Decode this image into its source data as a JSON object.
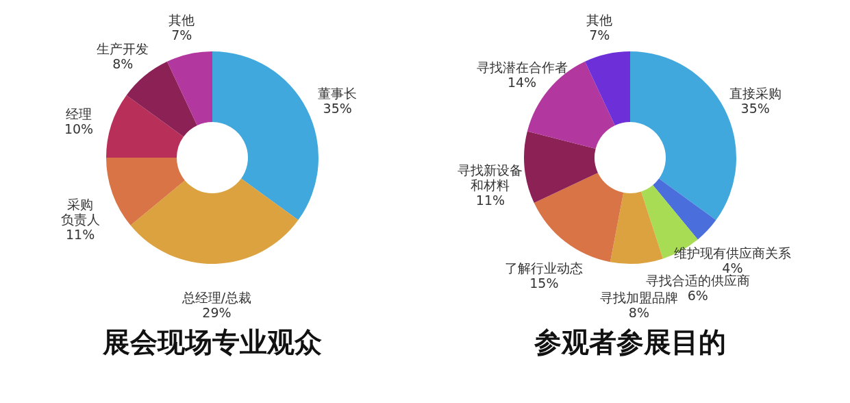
{
  "chart_data": [
    {
      "type": "donut",
      "title": "展会现场专业观众",
      "categories": [
        "董事长",
        "总经理/总裁",
        "采购负责人",
        "经理",
        "生产开发",
        "其他"
      ],
      "values": [
        35,
        29,
        11,
        10,
        8,
        7
      ],
      "value_labels": [
        "35%",
        "29%",
        "11%",
        "10%",
        "8%",
        "7%"
      ],
      "colors": [
        "#41a8dd",
        "#dca23f",
        "#d87446",
        "#b8305a",
        "#8b2155",
        "#b2389f"
      ]
    },
    {
      "type": "donut",
      "title": "参观者参展目的",
      "categories": [
        "直接采购",
        "维护现有供应商关系",
        "寻找合适的供应商",
        "寻找加盟品牌",
        "了解行业动态",
        "寻找新设备和材料",
        "寻找潜在合作者",
        "其他"
      ],
      "values": [
        35,
        4,
        6,
        8,
        15,
        11,
        14,
        7
      ],
      "value_labels": [
        "35%",
        "4%",
        "6%",
        "8%",
        "15%",
        "11%",
        "14%",
        "7%"
      ],
      "colors": [
        "#41a8dd",
        "#4a6fdc",
        "#a8dc55",
        "#dca23f",
        "#d87446",
        "#8b2155",
        "#b2389f",
        "#6c2fd8"
      ]
    }
  ]
}
